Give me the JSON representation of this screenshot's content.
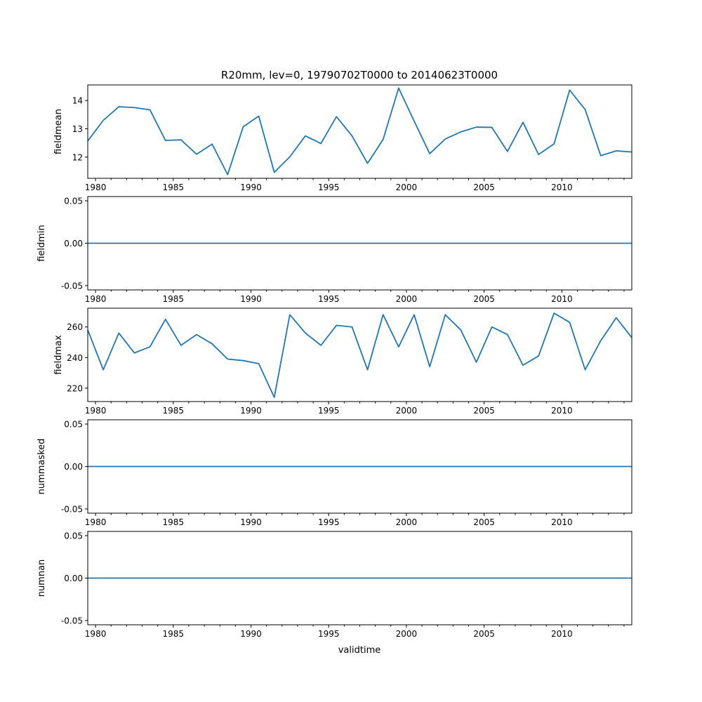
{
  "chart_data": {
    "title": "R20mm, lev=0, 19790702T0000 to 20140623T0000",
    "xlabel": "validtime",
    "type": "line",
    "x": [
      1979.5,
      1980.5,
      1981.5,
      1982.5,
      1983.5,
      1984.5,
      1985.5,
      1986.5,
      1987.5,
      1988.5,
      1989.5,
      1990.5,
      1991.5,
      1992.5,
      1993.5,
      1994.5,
      1995.5,
      1996.5,
      1997.5,
      1998.5,
      1999.5,
      2000.5,
      2001.5,
      2002.5,
      2003.5,
      2004.5,
      2005.5,
      2006.5,
      2007.5,
      2008.5,
      2009.5,
      2010.5,
      2011.5,
      2012.5,
      2013.5,
      2014.5
    ],
    "xlim": [
      1979.5,
      2014.5
    ],
    "xticks": [
      "1980",
      "1985",
      "1990",
      "1995",
      "2000",
      "2005",
      "2010"
    ],
    "line_color": "#1f77b4",
    "panels": [
      {
        "ylabel": "fieldmean",
        "ylim": [
          11.25,
          14.55
        ],
        "yticks": [
          "12",
          "13",
          "14"
        ],
        "ytick_values": [
          12,
          13,
          14
        ],
        "values": [
          12.57,
          13.3,
          13.78,
          13.75,
          13.67,
          12.59,
          12.61,
          12.1,
          12.46,
          11.38,
          13.07,
          13.45,
          11.46,
          12.01,
          12.75,
          12.48,
          13.43,
          12.75,
          11.78,
          12.62,
          14.44,
          13.27,
          12.12,
          12.64,
          12.89,
          13.06,
          13.05,
          12.2,
          13.23,
          12.09,
          12.47,
          14.37,
          13.68,
          12.05,
          12.22,
          12.18
        ]
      },
      {
        "ylabel": "fieldmin",
        "ylim": [
          -0.055,
          0.055
        ],
        "yticks": [
          "-0.05",
          "0.00",
          "0.05"
        ],
        "ytick_values": [
          -0.05,
          0,
          0.05
        ],
        "values": [
          0,
          0,
          0,
          0,
          0,
          0,
          0,
          0,
          0,
          0,
          0,
          0,
          0,
          0,
          0,
          0,
          0,
          0,
          0,
          0,
          0,
          0,
          0,
          0,
          0,
          0,
          0,
          0,
          0,
          0,
          0,
          0,
          0,
          0,
          0,
          0
        ]
      },
      {
        "ylabel": "fieldmax",
        "ylim": [
          211.25,
          272.25
        ],
        "yticks": [
          "220",
          "240",
          "260"
        ],
        "ytick_values": [
          220,
          240,
          260
        ],
        "values": [
          258,
          232,
          256,
          243,
          247,
          265,
          248,
          255,
          249,
          239,
          238,
          236,
          214,
          268,
          256,
          248,
          261,
          260,
          232,
          268,
          247,
          268,
          234,
          268,
          258,
          237,
          260,
          255,
          235,
          241,
          269,
          263,
          232,
          251,
          266,
          253
        ]
      },
      {
        "ylabel": "nummasked",
        "ylim": [
          -0.055,
          0.055
        ],
        "yticks": [
          "-0.05",
          "0.00",
          "0.05"
        ],
        "ytick_values": [
          -0.05,
          0,
          0.05
        ],
        "values": [
          0,
          0,
          0,
          0,
          0,
          0,
          0,
          0,
          0,
          0,
          0,
          0,
          0,
          0,
          0,
          0,
          0,
          0,
          0,
          0,
          0,
          0,
          0,
          0,
          0,
          0,
          0,
          0,
          0,
          0,
          0,
          0,
          0,
          0,
          0,
          0
        ]
      },
      {
        "ylabel": "numnan",
        "ylim": [
          -0.055,
          0.055
        ],
        "yticks": [
          "-0.05",
          "0.00",
          "0.05"
        ],
        "ytick_values": [
          -0.05,
          0,
          0.05
        ],
        "values": [
          0,
          0,
          0,
          0,
          0,
          0,
          0,
          0,
          0,
          0,
          0,
          0,
          0,
          0,
          0,
          0,
          0,
          0,
          0,
          0,
          0,
          0,
          0,
          0,
          0,
          0,
          0,
          0,
          0,
          0,
          0,
          0,
          0,
          0,
          0,
          0
        ]
      }
    ]
  }
}
